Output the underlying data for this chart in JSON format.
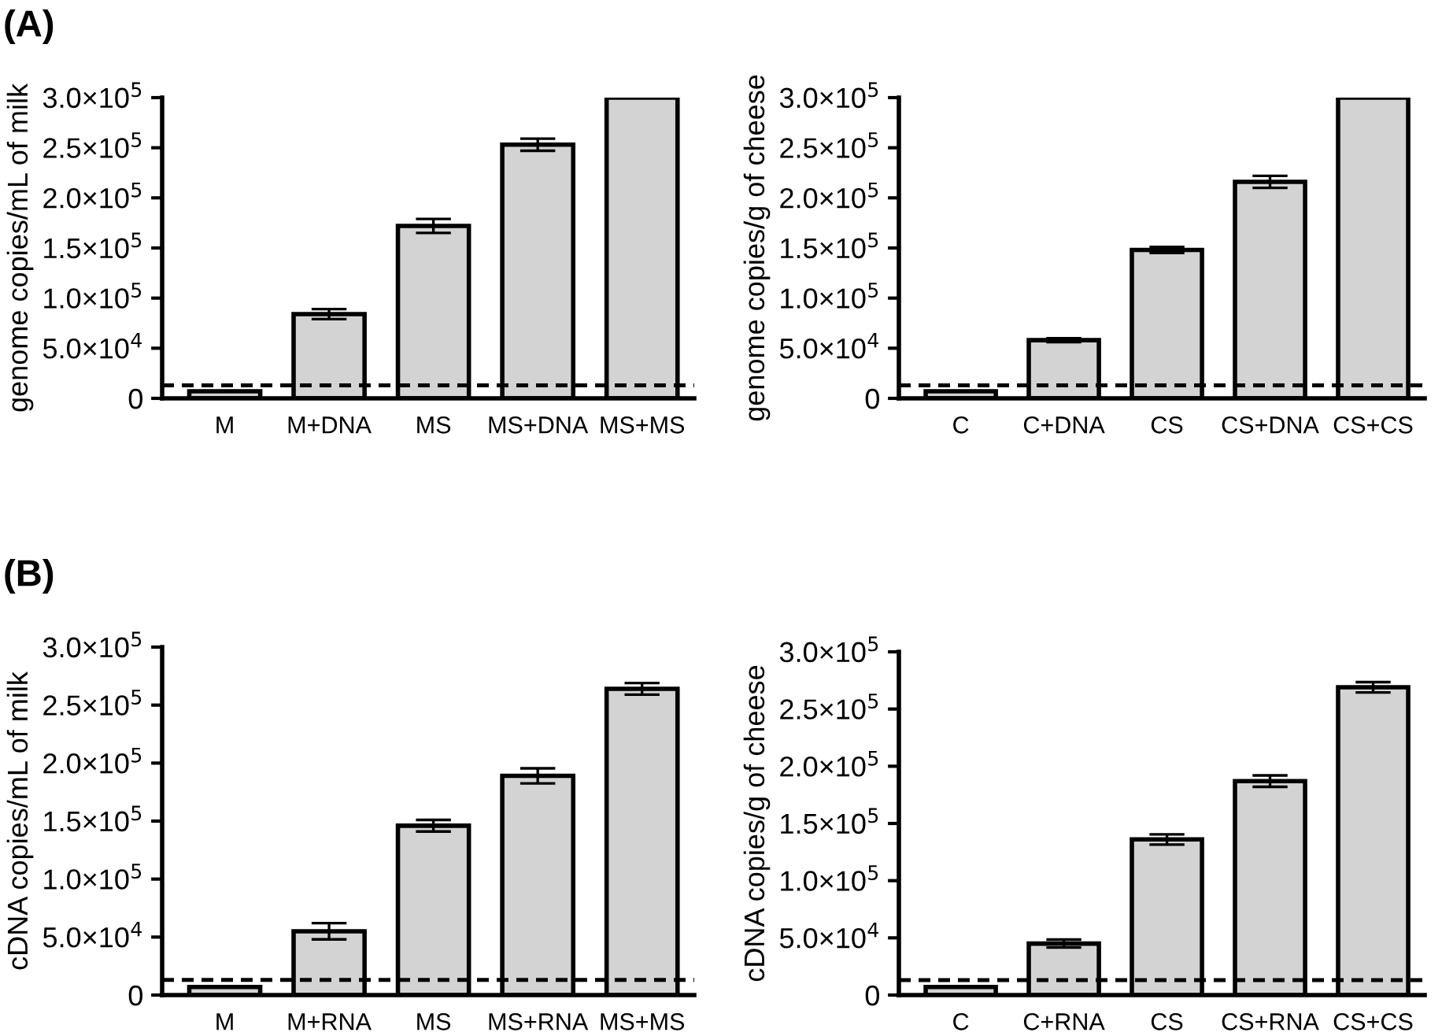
{
  "chart_data": [
    {
      "type": "bar",
      "ylabel": "genome copies/mL of milk",
      "annotations": [
        "(A)"
      ],
      "categories": [
        "M",
        "M+DNA",
        "MS",
        "MS+DNA",
        "MS+MS"
      ],
      "values": [
        7000,
        84000,
        172000,
        253000,
        300000
      ],
      "errors": [
        null,
        5000,
        7000,
        6000,
        null
      ],
      "color": "#d3d3d3",
      "ylim": [
        0,
        300000
      ],
      "yticks": [
        {
          "value": 0,
          "label": "0"
        },
        {
          "value": 50000,
          "label": "5.0×10$^{4}$"
        },
        {
          "value": 100000,
          "label": "1.0×10$^{5}$"
        },
        {
          "value": 150000,
          "label": "1.5×10$^{5}$"
        },
        {
          "value": 200000,
          "label": "2.0×10$^{5}$"
        },
        {
          "value": 250000,
          "label": "2.5×10$^{5}$"
        },
        {
          "value": 300000,
          "label": "3.0×10$^{5}$"
        }
      ],
      "ref_lines": [
        {
          "axis": "y",
          "value": 13000,
          "line_style": "dashed",
          "color": "#000000"
        }
      ],
      "grid": false
    },
    {
      "type": "bar",
      "ylabel": "genome copies/g of cheese",
      "categories": [
        "C",
        "C+DNA",
        "CS",
        "CS+DNA",
        "CS+CS"
      ],
      "values": [
        7000,
        58000,
        148000,
        216000,
        300000
      ],
      "errors": [
        null,
        2000,
        3000,
        6000,
        null
      ],
      "color": "#d3d3d3",
      "ylim": [
        0,
        300000
      ],
      "yticks": [
        {
          "value": 0,
          "label": "0"
        },
        {
          "value": 50000,
          "label": "5.0×10$^{4}$"
        },
        {
          "value": 100000,
          "label": "1.0×10$^{5}$"
        },
        {
          "value": 150000,
          "label": "1.5×10$^{5}$"
        },
        {
          "value": 200000,
          "label": "2.0×10$^{5}$"
        },
        {
          "value": 250000,
          "label": "2.5×10$^{5}$"
        },
        {
          "value": 300000,
          "label": "3.0×10$^{5}$"
        }
      ],
      "ref_lines": [
        {
          "axis": "y",
          "value": 13000,
          "line_style": "dashed",
          "color": "#000000"
        }
      ],
      "grid": false
    },
    {
      "type": "bar",
      "ylabel": "cDNA copies/mL of milk",
      "annotations": [
        "(B)"
      ],
      "categories": [
        "M",
        "M+RNA",
        "MS",
        "MS+RNA",
        "MS+MS"
      ],
      "values": [
        7000,
        55000,
        146000,
        189000,
        264000
      ],
      "errors": [
        null,
        7000,
        5000,
        6500,
        5000
      ],
      "color": "#d3d3d3",
      "ylim": [
        0,
        300000
      ],
      "yticks": [
        {
          "value": 0,
          "label": "0"
        },
        {
          "value": 50000,
          "label": "5.0×10$^{4}$"
        },
        {
          "value": 100000,
          "label": "1.0×10$^{5}$"
        },
        {
          "value": 150000,
          "label": "1.5×10$^{5}$"
        },
        {
          "value": 200000,
          "label": "2.0×10$^{5}$"
        },
        {
          "value": 250000,
          "label": "2.5×10$^{5}$"
        },
        {
          "value": 300000,
          "label": "3.0×10$^{5}$"
        }
      ],
      "ref_lines": [
        {
          "axis": "y",
          "value": 13000,
          "line_style": "dashed",
          "color": "#000000"
        }
      ],
      "grid": false
    },
    {
      "type": "bar",
      "ylabel": "cDNA copies/g of cheese",
      "categories": [
        "C",
        "C+RNA",
        "CS",
        "CS+RNA",
        "CS+CS"
      ],
      "values": [
        7000,
        45000,
        136000,
        187000,
        269000
      ],
      "errors": [
        null,
        3500,
        4500,
        5000,
        4500
      ],
      "color": "#d3d3d3",
      "ylim": [
        0,
        300000
      ],
      "yticks": [
        {
          "value": 0,
          "label": "0"
        },
        {
          "value": 50000,
          "label": "5.0×10$^{4}$"
        },
        {
          "value": 100000,
          "label": "1.0×10$^{5}$"
        },
        {
          "value": 150000,
          "label": "1.5×10$^{5}$"
        },
        {
          "value": 200000,
          "label": "2.0×10$^{5}$"
        },
        {
          "value": 250000,
          "label": "2.5×10$^{5}$"
        },
        {
          "value": 300000,
          "label": "3.0×10$^{5}$"
        }
      ],
      "ref_lines": [
        {
          "axis": "y",
          "value": 13000,
          "line_style": "dashed",
          "color": "#000000"
        }
      ],
      "grid": false
    }
  ]
}
